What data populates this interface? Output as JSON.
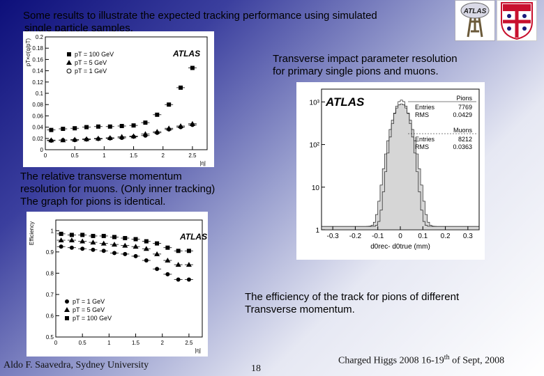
{
  "slide": {
    "intro_line1": "Some results to illustrate the expected tracking performance using simulated",
    "intro_line2": "single particle samples.",
    "ip_caption_line1": "Transverse impact  parameter resolution",
    "ip_caption_line2": "for primary single pions and muons.",
    "mom_caption_line1": "The relative transverse momentum",
    "mom_caption_line2": "resolution for muons. (Only inner tracking)",
    "mom_caption_line3": "The graph for pions is identical.",
    "eff_caption_line1": "The efficiency of the track for pions of different",
    "eff_caption_line2": "Transverse momentum.",
    "footer_author": "Aldo F. Saavedra, Sydney University",
    "footer_page": "18",
    "footer_event_prefix": "Charged Higgs 2008  16-19",
    "footer_event_sup": "th",
    "footer_event_suffix": " of Sept, 2008"
  },
  "logos": {
    "atlas_logo_text": "ATLAS",
    "crest_colors": [
      "#c8102e",
      "#ffffff",
      "#1a1a7a"
    ]
  },
  "chart_data": [
    {
      "type": "scatter",
      "title": "",
      "watermark": "ATLAS",
      "ylabel": "pT×σ(q/pT)",
      "xlabel": "|η|",
      "xlim": [
        0,
        2.75
      ],
      "ylim": [
        0,
        0.2
      ],
      "x_ticks": [
        "0",
        "0.5",
        "1",
        "1.5",
        "2",
        "2.5"
      ],
      "y_ticks": [
        "0",
        "0.02",
        "0.04",
        "0.06",
        "0.08",
        "0.1",
        "0.12",
        "0.14",
        "0.16",
        "0.18",
        "0.2"
      ],
      "legend": [
        "pT = 100 GeV",
        "pT = 5 GeV",
        "pT = 1 GeV"
      ],
      "series": [
        {
          "name": "pT = 100 GeV",
          "marker": "square",
          "x": [
            0.1,
            0.3,
            0.5,
            0.7,
            0.9,
            1.1,
            1.3,
            1.5,
            1.7,
            1.9,
            2.1,
            2.3,
            2.5
          ],
          "y": [
            0.035,
            0.037,
            0.038,
            0.04,
            0.041,
            0.041,
            0.042,
            0.043,
            0.048,
            0.062,
            0.08,
            0.11,
            0.145
          ]
        },
        {
          "name": "pT = 5 GeV",
          "marker": "triangle",
          "x": [
            0.1,
            0.3,
            0.5,
            0.7,
            0.9,
            1.1,
            1.3,
            1.5,
            1.7,
            1.9,
            2.1,
            2.3,
            2.5
          ],
          "y": [
            0.017,
            0.017,
            0.018,
            0.019,
            0.02,
            0.021,
            0.023,
            0.024,
            0.028,
            0.032,
            0.038,
            0.042,
            0.046
          ]
        },
        {
          "name": "pT = 1 GeV",
          "marker": "circle",
          "x": [
            0.1,
            0.3,
            0.5,
            0.7,
            0.9,
            1.1,
            1.3,
            1.5,
            1.7,
            1.9,
            2.1,
            2.3,
            2.5
          ],
          "y": [
            0.016,
            0.017,
            0.017,
            0.018,
            0.019,
            0.02,
            0.021,
            0.023,
            0.025,
            0.03,
            0.036,
            0.04,
            0.044
          ]
        }
      ]
    },
    {
      "type": "bar",
      "title": "",
      "watermark": "ATLAS",
      "xlabel": "d0rec- d0true (mm)",
      "ylabel": "",
      "log_y": true,
      "xlim": [
        -0.35,
        0.35
      ],
      "x_ticks": [
        "-0.3",
        "-0.2",
        "-0.1",
        "0",
        "0.1",
        "0.2",
        "0.3"
      ],
      "y_ticks": [
        "1",
        "10",
        "10²",
        "10³"
      ],
      "stat_boxes": [
        {
          "name": "Pions",
          "entries_label": "Entries",
          "entries": "7769",
          "rms_label": "RMS",
          "rms": "0.0429"
        },
        {
          "name": "Muons",
          "entries_label": "Entries",
          "entries": "8212",
          "rms_label": "RMS",
          "rms": "0.0363"
        }
      ],
      "series": [
        {
          "name": "Pions",
          "sigma": 0.03
        },
        {
          "name": "Muons",
          "sigma": 0.025
        }
      ]
    },
    {
      "type": "scatter",
      "title": "",
      "watermark": "ATLAS",
      "ylabel": "Efficiency",
      "xlabel": "|η|",
      "xlim": [
        0,
        2.75
      ],
      "ylim": [
        0.5,
        1.05
      ],
      "x_ticks": [
        "0",
        "0.5",
        "1",
        "1.5",
        "2",
        "2.5"
      ],
      "y_ticks": [
        "0.5",
        "0.6",
        "0.7",
        "0.8",
        "0.9",
        "1"
      ],
      "legend": [
        "pT = 1 GeV",
        "pT = 5 GeV",
        "pT = 100 GeV"
      ],
      "series": [
        {
          "name": "pT = 1 GeV",
          "marker": "circle",
          "x": [
            0.1,
            0.3,
            0.5,
            0.7,
            0.9,
            1.1,
            1.3,
            1.5,
            1.7,
            1.9,
            2.1,
            2.3,
            2.5
          ],
          "y": [
            0.925,
            0.92,
            0.915,
            0.91,
            0.905,
            0.895,
            0.89,
            0.88,
            0.86,
            0.82,
            0.795,
            0.77,
            0.77
          ]
        },
        {
          "name": "pT = 5 GeV",
          "marker": "triangle",
          "x": [
            0.1,
            0.3,
            0.5,
            0.7,
            0.9,
            1.1,
            1.3,
            1.5,
            1.7,
            1.9,
            2.1,
            2.3,
            2.5
          ],
          "y": [
            0.955,
            0.955,
            0.95,
            0.945,
            0.94,
            0.935,
            0.93,
            0.925,
            0.915,
            0.89,
            0.86,
            0.84,
            0.84
          ]
        },
        {
          "name": "pT = 100 GeV",
          "marker": "square",
          "x": [
            0.1,
            0.3,
            0.5,
            0.7,
            0.9,
            1.1,
            1.3,
            1.5,
            1.7,
            1.9,
            2.1,
            2.3,
            2.5
          ],
          "y": [
            0.985,
            0.98,
            0.98,
            0.975,
            0.975,
            0.97,
            0.965,
            0.96,
            0.95,
            0.94,
            0.92,
            0.905,
            0.905
          ]
        }
      ]
    }
  ]
}
